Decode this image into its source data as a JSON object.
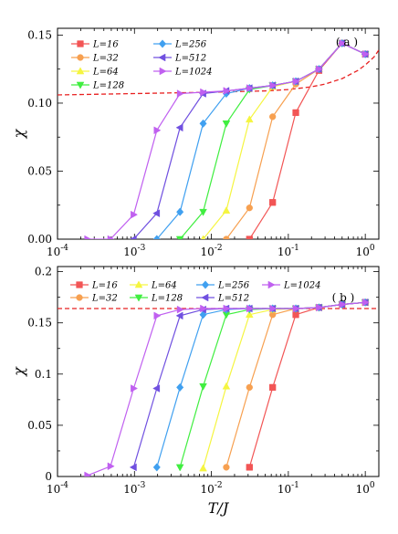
{
  "chart_data": [
    {
      "type": "line",
      "panel_label": "( a )",
      "ylabel": "χ",
      "xlabel": "",
      "xscale": "log",
      "xlim": [
        0.0001,
        1.5
      ],
      "ylim": [
        0,
        0.155
      ],
      "x_ticks": [
        "10^-4",
        "10^-3",
        "10^-2",
        "10^-1",
        "10^0"
      ],
      "y_ticks": [
        "0.00",
        "0.05",
        "0.10",
        "0.15"
      ],
      "y_tick_values": [
        0,
        0.05,
        0.1,
        0.15
      ],
      "legend": {
        "placement": "top-left",
        "columns": 2
      },
      "dashed_curve": {
        "color": "#e82020",
        "x": [
          0.0001,
          0.001,
          0.01,
          0.05,
          0.1,
          0.2,
          0.3,
          0.5,
          0.8,
          1.0,
          1.3,
          1.5
        ],
        "y": [
          0.106,
          0.107,
          0.108,
          0.109,
          0.11,
          0.112,
          0.114,
          0.118,
          0.124,
          0.128,
          0.134,
          0.139
        ]
      },
      "series": [
        {
          "name": "L=16",
          "color": "#f25555",
          "marker": "square",
          "x": [
            0.03125,
            0.0625,
            0.125,
            0.25,
            0.5,
            1.0
          ],
          "y": [
            0.0,
            0.027,
            0.093,
            0.124,
            0.144,
            0.136
          ]
        },
        {
          "name": "L=32",
          "color": "#f7a050",
          "marker": "circle",
          "x": [
            0.015625,
            0.03125,
            0.0625,
            0.125,
            0.25,
            0.5,
            1.0
          ],
          "y": [
            0.0,
            0.023,
            0.09,
            0.114,
            0.125,
            0.144,
            0.136
          ]
        },
        {
          "name": "L=64",
          "color": "#f5f540",
          "marker": "triangle-up",
          "x": [
            0.0078125,
            0.015625,
            0.03125,
            0.0625,
            0.125,
            0.25,
            0.5,
            1.0
          ],
          "y": [
            0.0,
            0.021,
            0.088,
            0.112,
            0.116,
            0.125,
            0.144,
            0.136
          ]
        },
        {
          "name": "L=128",
          "color": "#40ee40",
          "marker": "triangle-down",
          "x": [
            0.00390625,
            0.0078125,
            0.015625,
            0.03125,
            0.0625,
            0.125,
            0.25,
            0.5,
            1.0
          ],
          "y": [
            0.0,
            0.02,
            0.085,
            0.11,
            0.113,
            0.116,
            0.125,
            0.144,
            0.136
          ]
        },
        {
          "name": "L=256",
          "color": "#40a0f0",
          "marker": "diamond",
          "x": [
            0.001953125,
            0.00390625,
            0.0078125,
            0.015625,
            0.03125,
            0.0625,
            0.125,
            0.25,
            0.5,
            1.0
          ],
          "y": [
            0.0,
            0.02,
            0.085,
            0.107,
            0.111,
            0.113,
            0.116,
            0.125,
            0.144,
            0.136
          ]
        },
        {
          "name": "L=512",
          "color": "#7050e0",
          "marker": "triangle-left",
          "x": [
            0.0009765625,
            0.001953125,
            0.00390625,
            0.0078125,
            0.015625,
            0.03125,
            0.0625,
            0.125,
            0.25,
            0.5,
            1.0
          ],
          "y": [
            0.0,
            0.019,
            0.082,
            0.107,
            0.109,
            0.111,
            0.113,
            0.116,
            0.125,
            0.144,
            0.136
          ]
        },
        {
          "name": "L=1024",
          "color": "#c060f0",
          "marker": "triangle-right",
          "x": [
            0.000244140625,
            0.00048828125,
            0.0009765625,
            0.001953125,
            0.00390625,
            0.0078125,
            0.015625,
            0.03125,
            0.0625,
            0.125,
            0.25,
            0.5,
            1.0
          ],
          "y": [
            0.0,
            0.0,
            0.018,
            0.08,
            0.107,
            0.108,
            0.109,
            0.111,
            0.113,
            0.116,
            0.125,
            0.144,
            0.136
          ]
        }
      ]
    },
    {
      "type": "line",
      "panel_label": "( b )",
      "ylabel": "χ",
      "xlabel": "T/J",
      "xscale": "log",
      "xlim": [
        0.0001,
        1.5
      ],
      "ylim": [
        0,
        0.205
      ],
      "x_ticks": [
        "10^-4",
        "10^-3",
        "10^-2",
        "10^-1",
        "10^0"
      ],
      "y_ticks": [
        "0",
        "0.05",
        "0.1",
        "0.15",
        "0.2"
      ],
      "y_tick_values": [
        0,
        0.05,
        0.1,
        0.15,
        0.2
      ],
      "legend": {
        "placement": "top",
        "columns": 5
      },
      "dashed_curve": {
        "color": "#e82020",
        "x": [
          0.0001,
          1.5
        ],
        "y": [
          0.164,
          0.164
        ]
      },
      "series": [
        {
          "name": "L=16",
          "color": "#f25555",
          "marker": "square",
          "x": [
            0.03125,
            0.0625,
            0.125,
            0.25,
            0.5,
            1.0
          ],
          "y": [
            0.009,
            0.087,
            0.158,
            0.165,
            0.168,
            0.17
          ]
        },
        {
          "name": "L=32",
          "color": "#f7a050",
          "marker": "circle",
          "x": [
            0.015625,
            0.03125,
            0.0625,
            0.125,
            0.25,
            0.5,
            1.0
          ],
          "y": [
            0.009,
            0.087,
            0.158,
            0.164,
            0.165,
            0.168,
            0.17
          ]
        },
        {
          "name": "L=64",
          "color": "#f5f540",
          "marker": "triangle-up",
          "x": [
            0.0078125,
            0.015625,
            0.03125,
            0.0625,
            0.125,
            0.25,
            0.5,
            1.0
          ],
          "y": [
            0.008,
            0.088,
            0.158,
            0.163,
            0.164,
            0.165,
            0.168,
            0.17
          ]
        },
        {
          "name": "L=128",
          "color": "#40ee40",
          "marker": "triangle-down",
          "x": [
            0.00390625,
            0.0078125,
            0.015625,
            0.03125,
            0.0625,
            0.125,
            0.25,
            0.5,
            1.0
          ],
          "y": [
            0.009,
            0.088,
            0.158,
            0.163,
            0.164,
            0.164,
            0.165,
            0.168,
            0.17
          ]
        },
        {
          "name": "L=256",
          "color": "#40a0f0",
          "marker": "diamond",
          "x": [
            0.001953125,
            0.00390625,
            0.0078125,
            0.015625,
            0.03125,
            0.0625,
            0.125,
            0.25,
            0.5,
            1.0
          ],
          "y": [
            0.009,
            0.087,
            0.158,
            0.163,
            0.164,
            0.164,
            0.164,
            0.165,
            0.168,
            0.17
          ]
        },
        {
          "name": "L=512",
          "color": "#7050e0",
          "marker": "triangle-left",
          "x": [
            0.0009765625,
            0.001953125,
            0.00390625,
            0.0078125,
            0.015625,
            0.03125,
            0.0625,
            0.125,
            0.25,
            0.5,
            1.0
          ],
          "y": [
            0.009,
            0.086,
            0.157,
            0.163,
            0.164,
            0.164,
            0.164,
            0.164,
            0.165,
            0.168,
            0.17
          ]
        },
        {
          "name": "L=1024",
          "color": "#c060f0",
          "marker": "triangle-right",
          "x": [
            0.000244140625,
            0.00048828125,
            0.0009765625,
            0.001953125,
            0.00390625,
            0.0078125,
            0.015625,
            0.03125,
            0.0625,
            0.125,
            0.25,
            0.5,
            1.0
          ],
          "y": [
            0.001,
            0.01,
            0.086,
            0.157,
            0.163,
            0.164,
            0.164,
            0.164,
            0.164,
            0.164,
            0.165,
            0.168,
            0.17
          ]
        }
      ]
    }
  ]
}
